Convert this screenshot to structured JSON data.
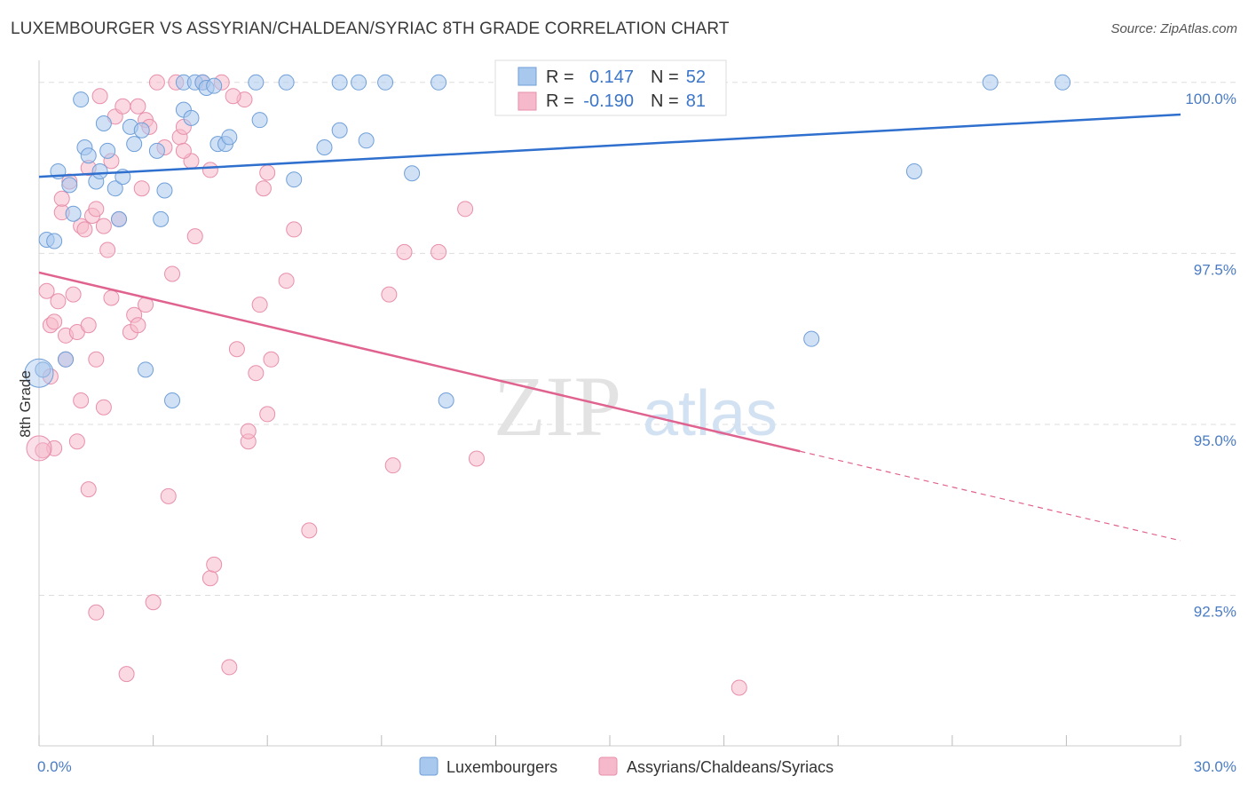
{
  "title": "LUXEMBOURGER VS ASSYRIAN/CHALDEAN/SYRIAC 8TH GRADE CORRELATION CHART",
  "source": "Source: ZipAtlas.com",
  "watermark": {
    "zip": "ZIP",
    "atlas": "atlas"
  },
  "colors": {
    "blue_fill": "#a9c8ee",
    "blue_stroke": "#6f9fd8",
    "blue_line": "#2f6fce",
    "pink_fill": "#f5b9cb",
    "pink_stroke": "#e88fab",
    "pink_line": "#e0628f",
    "grid": "#dddddd",
    "axis_text": "#4a7cc4"
  },
  "legend": {
    "r_label": "R =",
    "n_label": "N =",
    "series": [
      {
        "r": "0.147",
        "n": "52"
      },
      {
        "r": "-0.190",
        "n": "81"
      }
    ]
  },
  "chart_data": {
    "type": "scatter",
    "xlabel": "",
    "ylabel": "8th Grade",
    "xlim": [
      0,
      30
    ],
    "ylim": [
      90.3,
      100.4
    ],
    "x_tick_labels": [
      "0.0%",
      "30.0%"
    ],
    "y_ticks": [
      100,
      97.5,
      95,
      92.5
    ],
    "y_tick_labels": [
      "100.0%",
      "97.5%",
      "95.0%",
      "92.5%"
    ],
    "series": [
      {
        "name": "Luxembourgers",
        "trend": {
          "x": [
            0,
            30
          ],
          "y": [
            98.62,
            99.53
          ],
          "dashed_from": null
        },
        "points": [
          [
            0.5,
            98.7
          ],
          [
            1.1,
            99.75
          ],
          [
            1.2,
            99.05
          ],
          [
            1.3,
            98.93
          ],
          [
            1.5,
            98.55
          ],
          [
            1.7,
            99.4
          ],
          [
            1.8,
            99.0
          ],
          [
            1.6,
            98.7
          ],
          [
            2.0,
            98.45
          ],
          [
            2.1,
            98.0
          ],
          [
            2.2,
            98.62
          ],
          [
            2.4,
            99.35
          ],
          [
            2.5,
            99.1
          ],
          [
            2.7,
            99.3
          ],
          [
            3.1,
            99.0
          ],
          [
            3.2,
            98.0
          ],
          [
            3.3,
            98.42
          ],
          [
            3.8,
            100.0
          ],
          [
            3.8,
            99.6
          ],
          [
            4.0,
            99.48
          ],
          [
            4.1,
            100.0
          ],
          [
            4.3,
            100.0
          ],
          [
            4.4,
            99.92
          ],
          [
            4.6,
            99.95
          ],
          [
            4.7,
            99.1
          ],
          [
            4.9,
            99.1
          ],
          [
            5.0,
            99.2
          ],
          [
            5.7,
            100.0
          ],
          [
            5.8,
            99.45
          ],
          [
            6.5,
            100.0
          ],
          [
            6.7,
            98.58
          ],
          [
            7.5,
            99.05
          ],
          [
            7.9,
            100.0
          ],
          [
            7.9,
            99.3
          ],
          [
            8.4,
            100.0
          ],
          [
            8.6,
            99.15
          ],
          [
            9.1,
            100.0
          ],
          [
            9.8,
            98.67
          ],
          [
            10.5,
            100.0
          ],
          [
            10.7,
            95.35
          ],
          [
            25.0,
            100.0
          ],
          [
            26.9,
            100.0
          ],
          [
            23.0,
            98.7
          ],
          [
            20.3,
            96.25
          ],
          [
            0.2,
            97.7
          ],
          [
            0.4,
            97.68
          ],
          [
            0.9,
            98.08
          ],
          [
            0.8,
            98.5
          ],
          [
            2.8,
            95.8
          ],
          [
            3.5,
            95.35
          ],
          [
            0.7,
            95.95
          ],
          [
            0.1,
            95.8
          ]
        ]
      },
      {
        "name": "Assyrians/Chaldeans/Syriacs",
        "trend": {
          "x": [
            0,
            30
          ],
          "y": [
            97.22,
            93.3
          ],
          "dashed_from": 20
        },
        "points": [
          [
            0.2,
            96.95
          ],
          [
            0.3,
            96.45
          ],
          [
            0.4,
            96.5
          ],
          [
            0.5,
            96.8
          ],
          [
            0.6,
            98.1
          ],
          [
            0.6,
            98.3
          ],
          [
            0.7,
            96.3
          ],
          [
            0.7,
            95.95
          ],
          [
            0.8,
            98.55
          ],
          [
            0.9,
            96.9
          ],
          [
            1.0,
            96.35
          ],
          [
            1.0,
            94.75
          ],
          [
            1.1,
            97.9
          ],
          [
            1.1,
            95.35
          ],
          [
            1.2,
            97.85
          ],
          [
            1.3,
            94.05
          ],
          [
            1.3,
            96.45
          ],
          [
            1.4,
            98.05
          ],
          [
            1.5,
            95.95
          ],
          [
            1.5,
            98.15
          ],
          [
            1.6,
            99.8
          ],
          [
            1.7,
            95.25
          ],
          [
            1.7,
            97.9
          ],
          [
            1.8,
            97.55
          ],
          [
            1.9,
            96.85
          ],
          [
            1.9,
            98.85
          ],
          [
            2.0,
            99.5
          ],
          [
            2.1,
            98.0
          ],
          [
            2.2,
            99.65
          ],
          [
            2.4,
            96.35
          ],
          [
            2.5,
            96.6
          ],
          [
            2.6,
            99.65
          ],
          [
            2.6,
            96.45
          ],
          [
            2.7,
            98.45
          ],
          [
            2.8,
            99.45
          ],
          [
            2.8,
            96.75
          ],
          [
            2.9,
            99.35
          ],
          [
            3.0,
            92.4
          ],
          [
            3.1,
            100.0
          ],
          [
            3.3,
            99.05
          ],
          [
            3.4,
            93.95
          ],
          [
            3.5,
            97.2
          ],
          [
            3.6,
            100.0
          ],
          [
            3.7,
            99.2
          ],
          [
            3.8,
            99.35
          ],
          [
            4.0,
            98.85
          ],
          [
            4.1,
            97.75
          ],
          [
            4.3,
            100.0
          ],
          [
            4.5,
            98.72
          ],
          [
            4.5,
            92.75
          ],
          [
            4.6,
            92.95
          ],
          [
            4.8,
            100.0
          ],
          [
            5.0,
            91.45
          ],
          [
            5.2,
            96.1
          ],
          [
            5.4,
            99.75
          ],
          [
            5.5,
            94.75
          ],
          [
            5.5,
            94.9
          ],
          [
            5.7,
            95.75
          ],
          [
            5.8,
            96.75
          ],
          [
            5.9,
            98.45
          ],
          [
            6.0,
            95.15
          ],
          [
            6.0,
            98.68
          ],
          [
            6.1,
            95.95
          ],
          [
            6.5,
            97.1
          ],
          [
            6.7,
            97.85
          ],
          [
            7.1,
            93.45
          ],
          [
            9.2,
            96.9
          ],
          [
            9.3,
            94.4
          ],
          [
            9.6,
            97.52
          ],
          [
            10.5,
            97.52
          ],
          [
            11.2,
            98.15
          ],
          [
            11.5,
            94.5
          ],
          [
            2.3,
            91.35
          ],
          [
            1.5,
            92.25
          ],
          [
            18.4,
            91.15
          ],
          [
            0.3,
            95.7
          ],
          [
            0.4,
            94.65
          ],
          [
            0.1,
            94.62
          ],
          [
            1.3,
            98.75
          ],
          [
            3.8,
            99.0
          ],
          [
            5.1,
            99.8
          ]
        ]
      }
    ]
  },
  "bottom_legend": [
    "Luxembourgers",
    "Assyrians/Chaldeans/Syriacs"
  ]
}
